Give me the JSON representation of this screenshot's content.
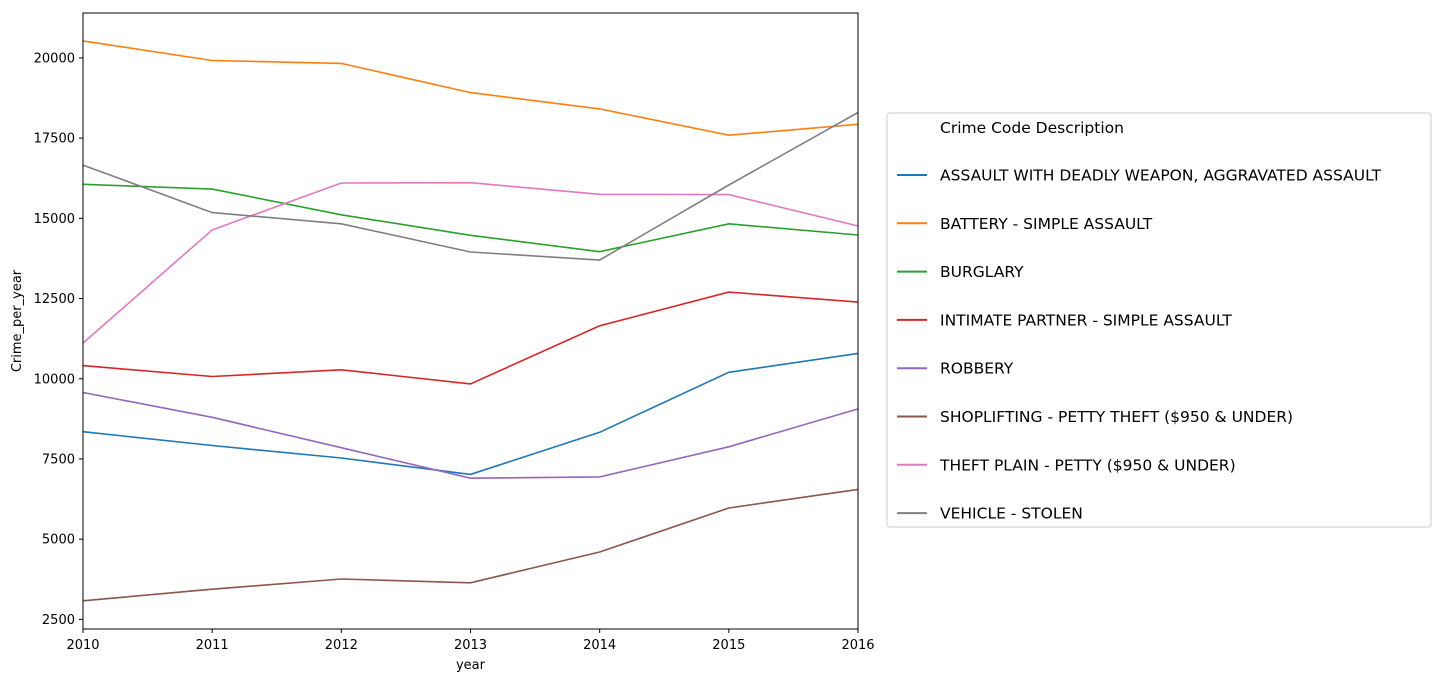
{
  "chart_data": {
    "type": "line",
    "xlabel": "year",
    "ylabel": "Crime_per_year",
    "x": [
      2010,
      2011,
      2012,
      2013,
      2014,
      2015,
      2016
    ],
    "xlim": [
      2010,
      2016
    ],
    "ylim": [
      2200,
      21400
    ],
    "xticks": [
      "2010",
      "2011",
      "2012",
      "2013",
      "2014",
      "2015",
      "2016"
    ],
    "yticks": [
      2500,
      5000,
      7500,
      10000,
      12500,
      15000,
      17500,
      20000
    ],
    "ytick_labels": [
      "2500",
      "5000",
      "7500",
      "10000",
      "12500",
      "15000",
      "17500",
      "20000"
    ],
    "grid": false,
    "legend": {
      "title": "Crime Code Description",
      "placement": "outside right"
    },
    "series": [
      {
        "name": "ASSAULT WITH DEADLY WEAPON, AGGRAVATED ASSAULT",
        "color": "#1f77b4",
        "values": [
          8350,
          7920,
          7530,
          7020,
          8330,
          10200,
          10790
        ]
      },
      {
        "name": "BATTERY - SIMPLE ASSAULT",
        "color": "#ff7f0e",
        "values": [
          20530,
          19920,
          19830,
          18920,
          18410,
          17590,
          17930
        ]
      },
      {
        "name": "BURGLARY",
        "color": "#2ca02c",
        "values": [
          16060,
          15910,
          15110,
          14470,
          13960,
          14830,
          14480
        ]
      },
      {
        "name": "INTIMATE PARTNER - SIMPLE ASSAULT",
        "color": "#d62728",
        "values": [
          10410,
          10070,
          10280,
          9840,
          11650,
          12700,
          12390
        ]
      },
      {
        "name": "ROBBERY",
        "color": "#9467bd",
        "values": [
          9570,
          8800,
          7850,
          6900,
          6940,
          7880,
          9060
        ]
      },
      {
        "name": "SHOPLIFTING - PETTY THEFT ($950 & UNDER)",
        "color": "#8c564b",
        "values": [
          3080,
          3440,
          3760,
          3640,
          4600,
          5970,
          6550
        ]
      },
      {
        "name": "THEFT PLAIN - PETTY ($950 & UNDER)",
        "color": "#e377c2",
        "values": [
          11110,
          14640,
          16100,
          16110,
          15750,
          15740,
          14760
        ]
      },
      {
        "name": "VEHICLE - STOLEN",
        "color": "#7f7f7f",
        "values": [
          16660,
          15180,
          14830,
          13950,
          13700,
          16040,
          18300
        ]
      }
    ]
  }
}
